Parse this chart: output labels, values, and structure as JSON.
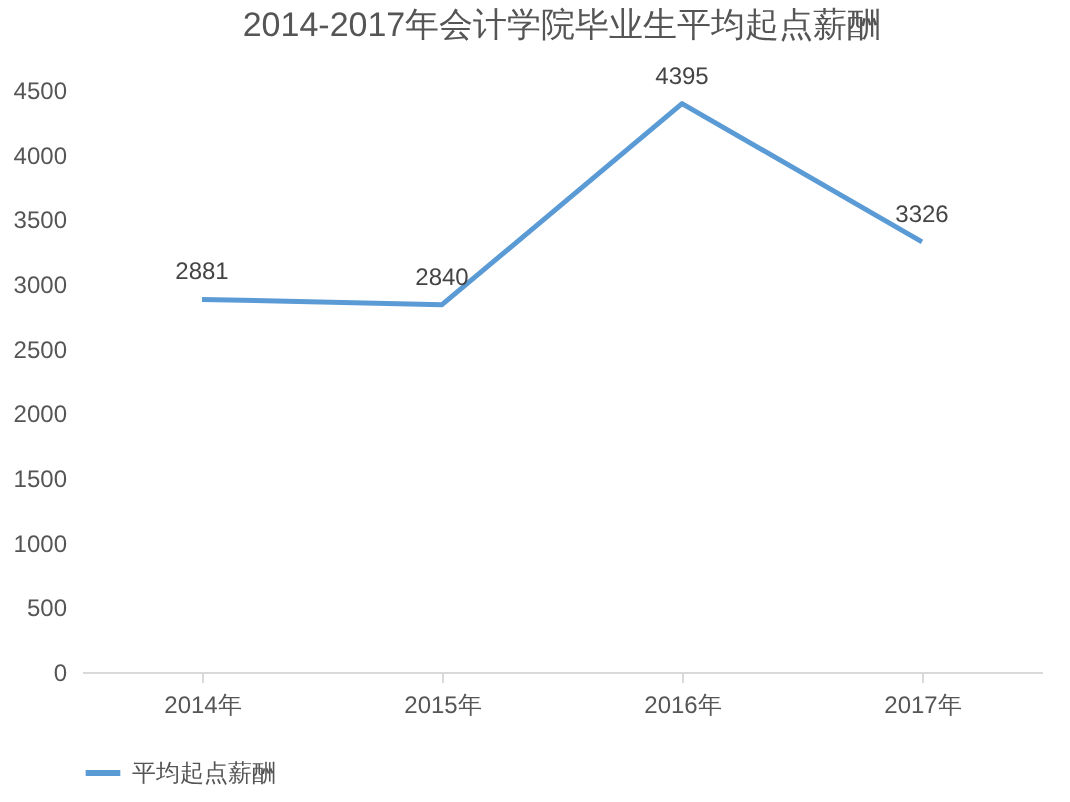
{
  "chart_data": {
    "type": "line",
    "title": "2014-2017年会计学院毕业生平均起点薪酬",
    "categories": [
      "2014年",
      "2015年",
      "2016年",
      "2017年"
    ],
    "series": [
      {
        "name": "平均起点薪酬",
        "color": "#5b9bd5",
        "values": [
          2881,
          2840,
          4395,
          3326
        ]
      }
    ],
    "ylim": [
      0,
      4500
    ],
    "yticks": [
      0,
      500,
      1000,
      1500,
      2000,
      2500,
      3000,
      3500,
      4000,
      4500
    ],
    "grid": false,
    "legend": "bottom",
    "data_labels": true,
    "marker": "none",
    "line_style": "solid"
  }
}
